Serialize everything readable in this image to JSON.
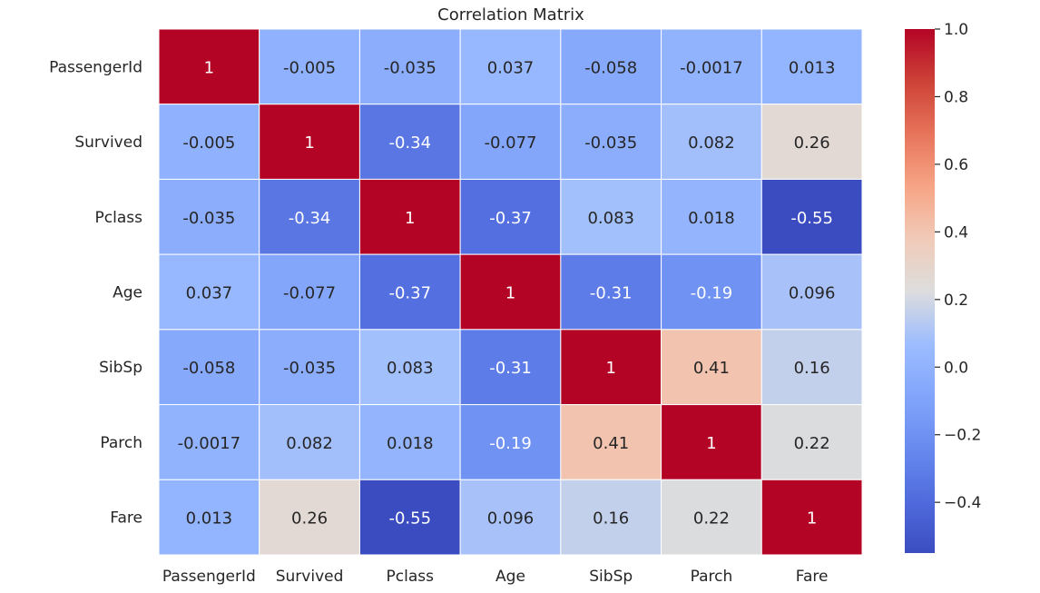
{
  "chart_data": {
    "type": "heatmap",
    "title": "Correlation Matrix",
    "row_labels": [
      "PassengerId",
      "Survived",
      "Pclass",
      "Age",
      "SibSp",
      "Parch",
      "Fare"
    ],
    "col_labels": [
      "PassengerId",
      "Survived",
      "Pclass",
      "Age",
      "SibSp",
      "Parch",
      "Fare"
    ],
    "values": [
      [
        1,
        -0.005,
        -0.035,
        0.037,
        -0.058,
        -0.0017,
        0.013
      ],
      [
        -0.005,
        1,
        -0.34,
        -0.077,
        -0.035,
        0.082,
        0.26
      ],
      [
        -0.035,
        -0.34,
        1,
        -0.37,
        0.083,
        0.018,
        -0.55
      ],
      [
        0.037,
        -0.077,
        -0.37,
        1,
        -0.31,
        -0.19,
        0.096
      ],
      [
        -0.058,
        -0.035,
        0.083,
        -0.31,
        1,
        0.41,
        0.16
      ],
      [
        -0.0017,
        0.082,
        0.018,
        -0.19,
        0.41,
        1,
        0.22
      ],
      [
        0.013,
        0.26,
        -0.55,
        0.096,
        0.16,
        0.22,
        1
      ]
    ],
    "cell_labels": [
      [
        "1",
        "-0.005",
        "-0.035",
        "0.037",
        "-0.058",
        "-0.0017",
        "0.013"
      ],
      [
        "-0.005",
        "1",
        "-0.34",
        "-0.077",
        "-0.035",
        "0.082",
        "0.26"
      ],
      [
        "-0.035",
        "-0.34",
        "1",
        "-0.37",
        "0.083",
        "0.018",
        "-0.55"
      ],
      [
        "0.037",
        "-0.077",
        "-0.37",
        "1",
        "-0.31",
        "-0.19",
        "0.096"
      ],
      [
        "-0.058",
        "-0.035",
        "0.083",
        "-0.31",
        "1",
        "0.41",
        "0.16"
      ],
      [
        "-0.0017",
        "0.082",
        "0.018",
        "-0.19",
        "0.41",
        "1",
        "0.22"
      ],
      [
        "0.013",
        "0.26",
        "-0.55",
        "0.096",
        "0.16",
        "0.22",
        "1"
      ]
    ],
    "colorbar": {
      "colormap": "coolwarm",
      "range": [
        -0.55,
        1.0
      ],
      "ticks": [
        1.0,
        0.8,
        0.6,
        0.4,
        0.2,
        0.0,
        -0.2,
        -0.4
      ],
      "tick_labels": [
        "1.0",
        "0.8",
        "0.6",
        "0.4",
        "0.2",
        "0.0",
        "−0.2",
        "−0.4"
      ]
    },
    "grid": false
  }
}
